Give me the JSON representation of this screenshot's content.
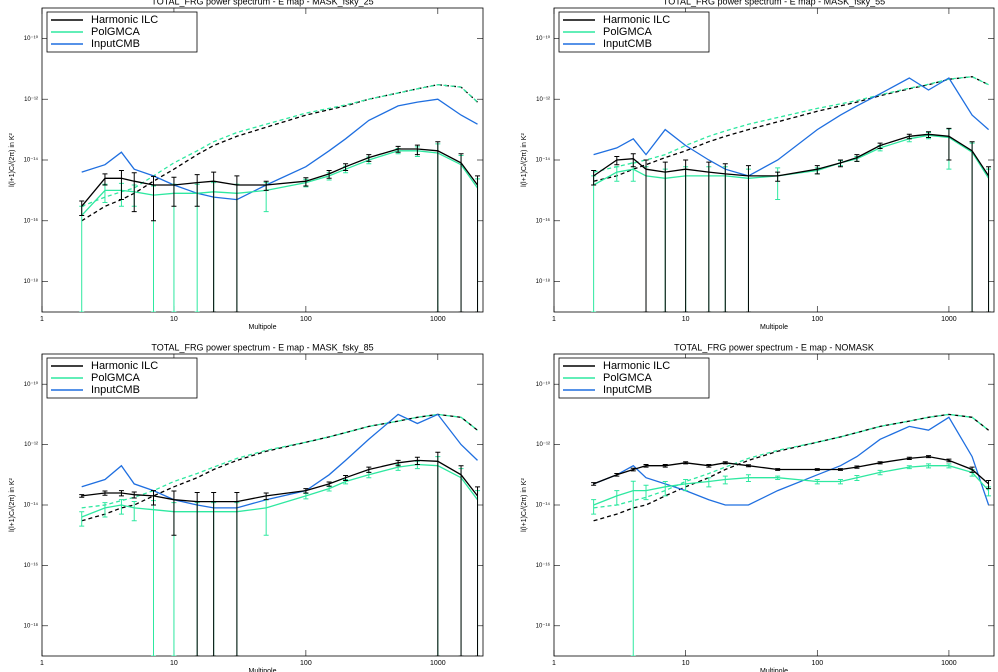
{
  "chart_data": [
    {
      "type": "line",
      "title": "TOTAL_FRG power spectrum - E map - MASK_fsky_25",
      "x_label": "Multipole",
      "y_label": "l(l+1)Cₗ/(2π) in K²",
      "log_x": true,
      "log_y": true,
      "xlim": [
        1,
        2200
      ],
      "ylim": [
        1e-19,
        1e-09
      ],
      "xticks": [
        1,
        10,
        100,
        1000
      ],
      "yticks": [
        {
          "value": 1e-10,
          "label": "10⁻¹⁰"
        },
        {
          "value": 1e-12,
          "label": "10⁻¹²"
        },
        {
          "value": 1e-14,
          "label": "10⁻¹⁴"
        },
        {
          "value": 1e-16,
          "label": "10⁻¹⁶"
        },
        {
          "value": 1e-18,
          "label": "10⁻¹⁸"
        }
      ],
      "x": [
        2,
        3,
        4,
        5,
        7,
        10,
        15,
        20,
        30,
        50,
        100,
        150,
        200,
        300,
        500,
        700,
        1000,
        1500,
        2000
      ],
      "series": [
        {
          "name": "Harmonic  ILC",
          "color": "#000000",
          "values": [
            3e-16,
            2.5e-15,
            2.5e-15,
            2e-15,
            1.5e-15,
            1.5e-15,
            1.8e-15,
            2e-15,
            1.5e-15,
            1.5e-15,
            2e-15,
            3.5e-15,
            6e-15,
            1.2e-14,
            2.3e-14,
            2.3e-14,
            2e-14,
            8e-15,
            1.5e-15
          ],
          "errors": [
            1.5e-16,
            1e-15,
            2e-15,
            1.8e-15,
            1.4e-15,
            1.2e-15,
            1.5e-15,
            2e-15,
            1.5e-15,
            5e-16,
            6e-16,
            1e-15,
            1.5e-15,
            3e-15,
            5e-15,
            8e-15,
            2e-14,
            8e-15,
            1.5e-15
          ]
        },
        {
          "name": "PolGMCA",
          "color": "#2ee8a0",
          "values": [
            1.5e-16,
            1e-15,
            1e-15,
            9e-16,
            7e-16,
            8e-16,
            8e-16,
            9e-16,
            8e-16,
            1e-15,
            1.8e-15,
            3e-15,
            5e-15,
            1e-14,
            2e-14,
            2e-14,
            1.7e-14,
            7e-15,
            1.2e-15
          ],
          "errors": [
            1.5e-16,
            6e-16,
            7e-16,
            6e-16,
            7e-16,
            8e-16,
            8e-16,
            9e-16,
            8e-16,
            8e-16,
            5e-16,
            8e-16,
            1.2e-15,
            2.5e-15,
            4e-15,
            7e-15,
            1.7e-14,
            7e-15,
            1.2e-15
          ]
        },
        {
          "name": "InputCMB",
          "color": "#1f6fe0",
          "values": [
            4e-15,
            7e-15,
            1.8e-14,
            5e-15,
            3e-15,
            1.5e-15,
            8e-16,
            6e-16,
            5e-16,
            1.5e-15,
            6e-15,
            2e-14,
            5e-14,
            2e-13,
            6e-13,
            8e-13,
            1e-12,
            3e-13,
            1.5e-13
          ]
        },
        {
          "color": "#000000",
          "dashed": true,
          "values": [
            1e-16,
            3e-16,
            5e-16,
            8e-16,
            2e-15,
            5e-15,
            1.5e-14,
            3e-14,
            6e-14,
            1.2e-13,
            3e-13,
            4.5e-13,
            6e-13,
            1e-12,
            1.6e-12,
            2.2e-12,
            3e-12,
            2.5e-12,
            8e-13
          ]
        },
        {
          "color": "#2ee8a0",
          "dashed": true,
          "values": [
            3e-16,
            6e-16,
            9e-16,
            1.2e-15,
            3e-15,
            8e-15,
            2e-14,
            4e-14,
            8e-14,
            1.5e-13,
            3.5e-13,
            5e-13,
            6.5e-13,
            1e-12,
            1.6e-12,
            2.2e-12,
            3e-12,
            2.5e-12,
            8e-13
          ]
        }
      ]
    },
    {
      "type": "line",
      "title": "TOTAL_FRG power spectrum - E map - MASK_fsky_55",
      "x_label": "Multipole",
      "y_label": "l(l+1)Cₗ/(2π) in K²",
      "log_x": true,
      "log_y": true,
      "xlim": [
        1,
        2200
      ],
      "ylim": [
        1e-19,
        1e-09
      ],
      "xticks": [
        1,
        10,
        100,
        1000
      ],
      "yticks": [
        {
          "value": 1e-10,
          "label": "10⁻¹⁰"
        },
        {
          "value": 1e-12,
          "label": "10⁻¹²"
        },
        {
          "value": 1e-14,
          "label": "10⁻¹⁴"
        },
        {
          "value": 1e-16,
          "label": "10⁻¹⁶"
        },
        {
          "value": 1e-18,
          "label": "10⁻¹⁸"
        }
      ],
      "x": [
        2,
        3,
        4,
        5,
        7,
        10,
        15,
        20,
        30,
        50,
        100,
        150,
        200,
        300,
        500,
        700,
        1000,
        1500,
        2000
      ],
      "series": [
        {
          "name": "Harmonic  ILC",
          "color": "#000000",
          "values": [
            3e-15,
            1e-14,
            1.1e-14,
            5e-15,
            4e-15,
            5e-15,
            4e-15,
            3.5e-15,
            3e-15,
            3e-15,
            5e-15,
            8e-15,
            1.2e-14,
            3e-14,
            6e-14,
            7e-14,
            6e-14,
            2e-14,
            3e-15
          ],
          "errors": [
            1.5e-15,
            3e-15,
            5e-15,
            5e-15,
            4.5e-15,
            5e-15,
            4.5e-15,
            4e-15,
            3.5e-15,
            1e-15,
            1.5e-15,
            2e-15,
            3e-15,
            6e-15,
            1e-14,
            1.5e-14,
            5e-14,
            2e-14,
            3e-15
          ]
        },
        {
          "name": "PolGMCA",
          "color": "#2ee8a0",
          "values": [
            1.5e-15,
            4e-15,
            5e-15,
            3e-15,
            2.5e-15,
            3e-15,
            3e-15,
            3e-15,
            2.5e-15,
            3e-15,
            4.5e-15,
            8e-15,
            1.1e-14,
            2.5e-14,
            5e-14,
            6.5e-14,
            5.5e-14,
            1.8e-14,
            2.5e-15
          ],
          "errors": [
            1.5e-15,
            2e-15,
            3e-15,
            3e-15,
            2.5e-15,
            3e-15,
            3e-15,
            3e-15,
            2.5e-15,
            2.5e-15,
            1e-15,
            1.5e-15,
            2e-15,
            5e-15,
            1e-14,
            1.5e-14,
            5e-14,
            1.8e-14,
            2.5e-15
          ]
        },
        {
          "name": "InputCMB",
          "color": "#1f6fe0",
          "values": [
            1.5e-14,
            2.5e-14,
            5e-14,
            1.5e-14,
            1e-13,
            3e-14,
            1e-14,
            5e-15,
            3e-15,
            1e-14,
            1e-13,
            3e-13,
            6e-13,
            1.5e-12,
            5e-12,
            2e-12,
            5e-12,
            3e-13,
            1e-13
          ]
        },
        {
          "color": "#000000",
          "dashed": true,
          "values": [
            2e-15,
            3e-15,
            5e-15,
            7e-15,
            1.2e-14,
            2e-14,
            4e-14,
            6e-14,
            1e-13,
            1.8e-13,
            4e-13,
            6e-13,
            8e-13,
            1.3e-12,
            2.2e-12,
            3e-12,
            4.5e-12,
            5.5e-12,
            3e-12
          ]
        },
        {
          "color": "#2ee8a0",
          "dashed": true,
          "values": [
            4e-15,
            6e-15,
            8e-15,
            1e-14,
            1.5e-14,
            3e-14,
            6e-14,
            9e-14,
            1.5e-13,
            2.5e-13,
            5e-13,
            7e-13,
            9e-13,
            1.4e-12,
            2.3e-12,
            3.1e-12,
            4.6e-12,
            5.5e-12,
            3e-12
          ]
        }
      ]
    },
    {
      "type": "line",
      "title": "TOTAL_FRG power spectrum - E map - MASK_fsky_85",
      "x_label": "Multipole",
      "y_label": "l(l+1)Cₗ/(2π) in K²",
      "log_x": true,
      "log_y": true,
      "xlim": [
        1,
        2200
      ],
      "ylim": [
        1e-19,
        1e-09
      ],
      "xticks": [
        1,
        10,
        100,
        1000
      ],
      "yticks": [
        {
          "value": 1e-10,
          "label": "10⁻¹⁰"
        },
        {
          "value": 1e-12,
          "label": "10⁻¹²"
        },
        {
          "value": 1e-14,
          "label": "10⁻¹⁴"
        },
        {
          "value": 1e-16,
          "label": "10⁻¹⁶"
        },
        {
          "value": 1e-18,
          "label": "10⁻¹⁸"
        }
      ],
      "x": [
        2,
        3,
        4,
        5,
        7,
        10,
        15,
        20,
        30,
        50,
        100,
        150,
        200,
        300,
        500,
        700,
        1000,
        1500,
        2000
      ],
      "series": [
        {
          "name": "Harmonic  ILC",
          "color": "#000000",
          "values": [
            2e-14,
            2.5e-14,
            2.5e-14,
            2.2e-14,
            2e-14,
            1.5e-14,
            1.3e-14,
            1.3e-14,
            1.3e-14,
            2e-14,
            3e-14,
            5e-14,
            8e-14,
            1.5e-13,
            2.5e-13,
            3e-13,
            2.8e-13,
            1e-13,
            2e-14
          ],
          "errors": [
            2e-15,
            4e-15,
            5e-15,
            5e-15,
            1e-14,
            1.4e-14,
            1.3e-14,
            1.3e-14,
            1.3e-14,
            5e-15,
            5e-15,
            8e-15,
            1.5e-14,
            3e-14,
            5e-14,
            8e-14,
            2.8e-13,
            1e-13,
            2e-14
          ]
        },
        {
          "name": "PolGMCA",
          "color": "#2ee8a0",
          "values": [
            4e-15,
            8e-15,
            1e-14,
            8e-15,
            7e-15,
            6e-15,
            6e-15,
            6e-15,
            6e-15,
            8e-15,
            2e-14,
            3.5e-14,
            6e-14,
            1e-13,
            1.8e-13,
            2.2e-13,
            2e-13,
            8e-14,
            1.5e-14
          ],
          "errors": [
            2e-15,
            4e-15,
            5e-15,
            5e-15,
            7e-15,
            6e-15,
            6e-15,
            6e-15,
            6e-15,
            7e-15,
            4e-15,
            6e-15,
            1e-14,
            2e-14,
            4e-14,
            6e-14,
            2e-13,
            8e-14,
            1.5e-14
          ]
        },
        {
          "name": "InputCMB",
          "color": "#1f6fe0",
          "values": [
            4e-14,
            7e-14,
            2e-13,
            5e-14,
            3e-14,
            1.5e-14,
            1e-14,
            8e-15,
            8e-15,
            1.5e-14,
            3e-14,
            1e-13,
            3e-13,
            1.5e-12,
            1e-11,
            5e-12,
            1e-11,
            1e-12,
            3e-13
          ]
        },
        {
          "color": "#000000",
          "dashed": true,
          "values": [
            3e-15,
            5e-15,
            8e-15,
            1e-14,
            2e-14,
            4e-14,
            8e-14,
            1.5e-13,
            3e-13,
            6e-13,
            1.2e-12,
            1.8e-12,
            2.5e-12,
            4e-12,
            6e-12,
            8e-12,
            1e-11,
            8e-12,
            3e-12
          ]
        },
        {
          "color": "#2ee8a0",
          "dashed": true,
          "values": [
            8e-15,
            1e-14,
            1.4e-14,
            1.8e-14,
            3e-14,
            6e-14,
            1.1e-13,
            1.8e-13,
            3.5e-13,
            6.5e-13,
            1.2e-12,
            1.8e-12,
            2.5e-12,
            4e-12,
            6e-12,
            8e-12,
            1e-11,
            8e-12,
            3e-12
          ]
        }
      ]
    },
    {
      "type": "line",
      "title": "TOTAL_FRG power spectrum - E map - NOMASK",
      "x_label": "Multipole",
      "y_label": "l(l+1)Cₗ/(2π) in K²",
      "log_x": true,
      "log_y": true,
      "xlim": [
        1,
        2200
      ],
      "ylim": [
        1e-19,
        1e-09
      ],
      "xticks": [
        1,
        10,
        100,
        1000
      ],
      "yticks": [
        {
          "value": 1e-10,
          "label": "10⁻¹⁰"
        },
        {
          "value": 1e-12,
          "label": "10⁻¹²"
        },
        {
          "value": 1e-14,
          "label": "10⁻¹⁴"
        },
        {
          "value": 1e-16,
          "label": "10⁻¹⁶"
        },
        {
          "value": 1e-18,
          "label": "10⁻¹⁸"
        }
      ],
      "x": [
        2,
        3,
        4,
        5,
        7,
        10,
        15,
        20,
        30,
        50,
        100,
        150,
        200,
        300,
        500,
        700,
        1000,
        1500,
        2000
      ],
      "series": [
        {
          "name": "Harmonic  ILC",
          "color": "#000000",
          "values": [
            5e-14,
            1e-13,
            1.5e-13,
            2e-13,
            2e-13,
            2.5e-13,
            2e-13,
            2.5e-13,
            2e-13,
            1.5e-13,
            1.5e-13,
            1.5e-13,
            1.8e-13,
            2.5e-13,
            3.5e-13,
            4e-13,
            3e-13,
            1.5e-13,
            5e-14
          ],
          "errors": [
            5e-15,
            1e-14,
            1.5e-14,
            2e-14,
            2e-14,
            2e-14,
            2e-14,
            2e-14,
            1.5e-14,
            1e-14,
            1e-14,
            1e-14,
            1.5e-14,
            2e-14,
            3e-14,
            3e-14,
            3e-14,
            3e-14,
            1.5e-14
          ]
        },
        {
          "name": "PolGMCA",
          "color": "#2ee8a0",
          "values": [
            1e-14,
            2e-14,
            3e-14,
            3e-14,
            4e-14,
            5e-14,
            6e-14,
            7e-14,
            8e-14,
            8e-14,
            6e-14,
            6e-14,
            8e-14,
            1.2e-13,
            1.8e-13,
            2e-13,
            2e-13,
            1.2e-13,
            3e-14
          ],
          "errors": [
            5e-15,
            1e-14,
            3.1e-14,
            1.5e-14,
            2e-14,
            2e-14,
            2e-14,
            2e-14,
            2e-14,
            1e-14,
            1e-14,
            1e-14,
            1.5e-14,
            2e-14,
            2e-14,
            3e-14,
            3e-14,
            3e-14,
            1e-14
          ]
        },
        {
          "name": "InputCMB",
          "color": "#1f6fe0",
          "values": [
            5e-14,
            1e-13,
            2e-13,
            8e-14,
            5e-14,
            3e-14,
            1.5e-14,
            1e-14,
            1e-14,
            3e-14,
            1e-13,
            2e-13,
            4e-13,
            1.5e-12,
            4e-12,
            3e-12,
            8e-12,
            4e-13,
            1e-14
          ]
        },
        {
          "color": "#000000",
          "dashed": true,
          "values": [
            3e-15,
            5e-15,
            8e-15,
            1e-14,
            2e-14,
            4e-14,
            8e-14,
            1.5e-13,
            3e-13,
            6e-13,
            1.2e-12,
            1.8e-12,
            2.5e-12,
            4e-12,
            6e-12,
            8e-12,
            1e-11,
            8e-12,
            3e-12
          ]
        },
        {
          "color": "#2ee8a0",
          "dashed": true,
          "values": [
            8e-15,
            1e-14,
            1.4e-14,
            1.8e-14,
            3e-14,
            6e-14,
            1.1e-13,
            1.8e-13,
            3.5e-13,
            6.5e-13,
            1.2e-12,
            1.8e-12,
            2.5e-12,
            4e-12,
            6e-12,
            8e-12,
            1e-11,
            8e-12,
            3e-12
          ]
        }
      ]
    }
  ]
}
